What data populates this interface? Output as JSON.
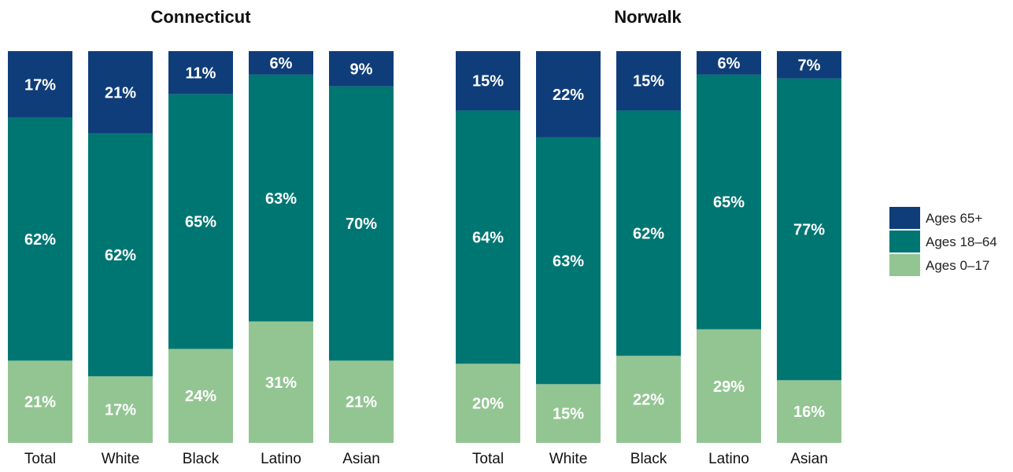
{
  "chart_data": [
    {
      "type": "bar",
      "stacked": true,
      "title": "Connecticut",
      "categories": [
        "Total",
        "White",
        "Black",
        "Latino",
        "Asian"
      ],
      "series": [
        {
          "name": "Ages 0–17",
          "values": [
            21,
            17,
            24,
            31,
            21
          ],
          "labels": [
            "21%",
            "17%",
            "24%",
            "31%",
            "21%"
          ]
        },
        {
          "name": "Ages 18–64",
          "values": [
            62,
            62,
            65,
            63,
            70
          ],
          "labels": [
            "62%",
            "62%",
            "65%",
            "63%",
            "70%"
          ]
        },
        {
          "name": "Ages 65+",
          "values": [
            17,
            21,
            11,
            6,
            9
          ],
          "labels": [
            "17%",
            "21%",
            "11%",
            "6%",
            "9%"
          ]
        }
      ],
      "ylim": [
        0,
        100
      ],
      "grid": false
    },
    {
      "type": "bar",
      "stacked": true,
      "title": "Norwalk",
      "categories": [
        "Total",
        "White",
        "Black",
        "Latino",
        "Asian"
      ],
      "series": [
        {
          "name": "Ages 0–17",
          "values": [
            20,
            15,
            22,
            29,
            16
          ],
          "labels": [
            "20%",
            "15%",
            "22%",
            "29%",
            "16%"
          ]
        },
        {
          "name": "Ages 18–64",
          "values": [
            64,
            63,
            62,
            65,
            77
          ],
          "labels": [
            "64%",
            "63%",
            "62%",
            "65%",
            "77%"
          ]
        },
        {
          "name": "Ages 65+",
          "values": [
            15,
            22,
            15,
            6,
            7
          ],
          "labels": [
            "15%",
            "22%",
            "15%",
            "6%",
            "7%"
          ]
        }
      ],
      "ylim": [
        0,
        100
      ],
      "grid": false
    }
  ],
  "legend": {
    "placement": "right",
    "entries": [
      {
        "label": "Ages 65+",
        "color": "#0f3d7a"
      },
      {
        "label": "Ages 18–64",
        "color": "#007672"
      },
      {
        "label": "Ages 0–17",
        "color": "#93c593"
      }
    ]
  },
  "colors": {
    "Ages 0–17": "#93c593",
    "Ages 18–64": "#007672",
    "Ages 65+": "#0f3d7a"
  }
}
